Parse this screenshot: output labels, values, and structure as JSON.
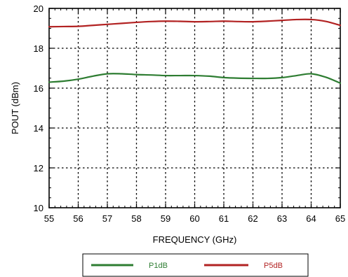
{
  "chart_data": {
    "type": "line",
    "title": "",
    "xlabel": "FREQUENCY (GHz)",
    "ylabel": "POUT  (dBm)",
    "xlim": [
      55,
      65
    ],
    "ylim": [
      10,
      20
    ],
    "x_ticks": [
      55,
      56,
      57,
      58,
      59,
      60,
      61,
      62,
      63,
      64,
      65
    ],
    "y_ticks": [
      10,
      12,
      14,
      16,
      18,
      20
    ],
    "x_tick_labels": [
      "55",
      "56",
      "57",
      "58",
      "59",
      "60",
      "61",
      "62",
      "63",
      "64",
      "65"
    ],
    "y_tick_labels": [
      "10",
      "12",
      "14",
      "16",
      "18",
      "20"
    ],
    "grid": true,
    "grid_style": "dotted",
    "legend_position": "bottom",
    "x": [
      55,
      55.5,
      56,
      56.5,
      57,
      57.5,
      58,
      58.5,
      59,
      59.5,
      60,
      60.5,
      61,
      61.5,
      62,
      62.5,
      63,
      63.5,
      64,
      64.5,
      65
    ],
    "series": [
      {
        "name": "P1dB",
        "color": "#2e7d32",
        "values": [
          16.3,
          16.35,
          16.45,
          16.6,
          16.72,
          16.72,
          16.68,
          16.66,
          16.63,
          16.63,
          16.63,
          16.6,
          16.53,
          16.5,
          16.49,
          16.49,
          16.53,
          16.63,
          16.72,
          16.55,
          16.25
        ]
      },
      {
        "name": "P5dB",
        "color": "#b22222",
        "values": [
          19.08,
          19.09,
          19.1,
          19.15,
          19.2,
          19.25,
          19.3,
          19.34,
          19.36,
          19.35,
          19.33,
          19.34,
          19.36,
          19.34,
          19.33,
          19.36,
          19.4,
          19.44,
          19.44,
          19.35,
          19.15
        ]
      }
    ]
  }
}
